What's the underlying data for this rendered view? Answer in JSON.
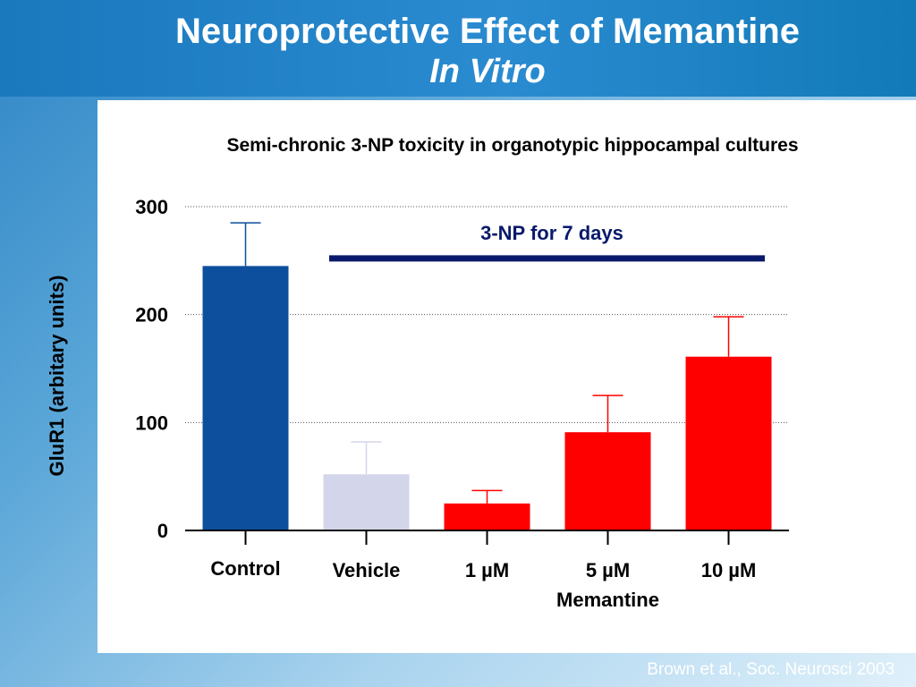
{
  "slide": {
    "title_line1": "Neuroprotective Effect of Memantine",
    "title_line2": "In Vitro",
    "citation": "Brown et al., Soc. Neurosci 2003"
  },
  "colors": {
    "control": "#0d4f9c",
    "vehicle": "#d3d6ea",
    "memantine": "#ff0000",
    "treatment_line": "#0a1a6b",
    "header": "#1a78bd"
  },
  "chart_data": {
    "type": "bar",
    "title": "Semi-chronic 3-NP toxicity in organotypic hippocampal cultures",
    "ylabel": "GluR1 (arbitary units)",
    "ylim": [
      0,
      300
    ],
    "yticks": [
      "0",
      "100",
      "200",
      "300"
    ],
    "grid": true,
    "categories": [
      "Control",
      "Vehicle",
      "1 µM",
      "5 µM",
      "10 µM"
    ],
    "category_group_label": "Memantine",
    "values": [
      245,
      52,
      25,
      91,
      161
    ],
    "error_upper": [
      285,
      82,
      37,
      125,
      198
    ],
    "bar_colors": [
      "#0d4f9c",
      "#d3d6ea",
      "#ff0000",
      "#ff0000",
      "#ff0000"
    ],
    "annotation": {
      "text": "3-NP for 7 days",
      "applies_to": [
        "Vehicle",
        "1 µM",
        "5 µM",
        "10 µM"
      ]
    }
  }
}
